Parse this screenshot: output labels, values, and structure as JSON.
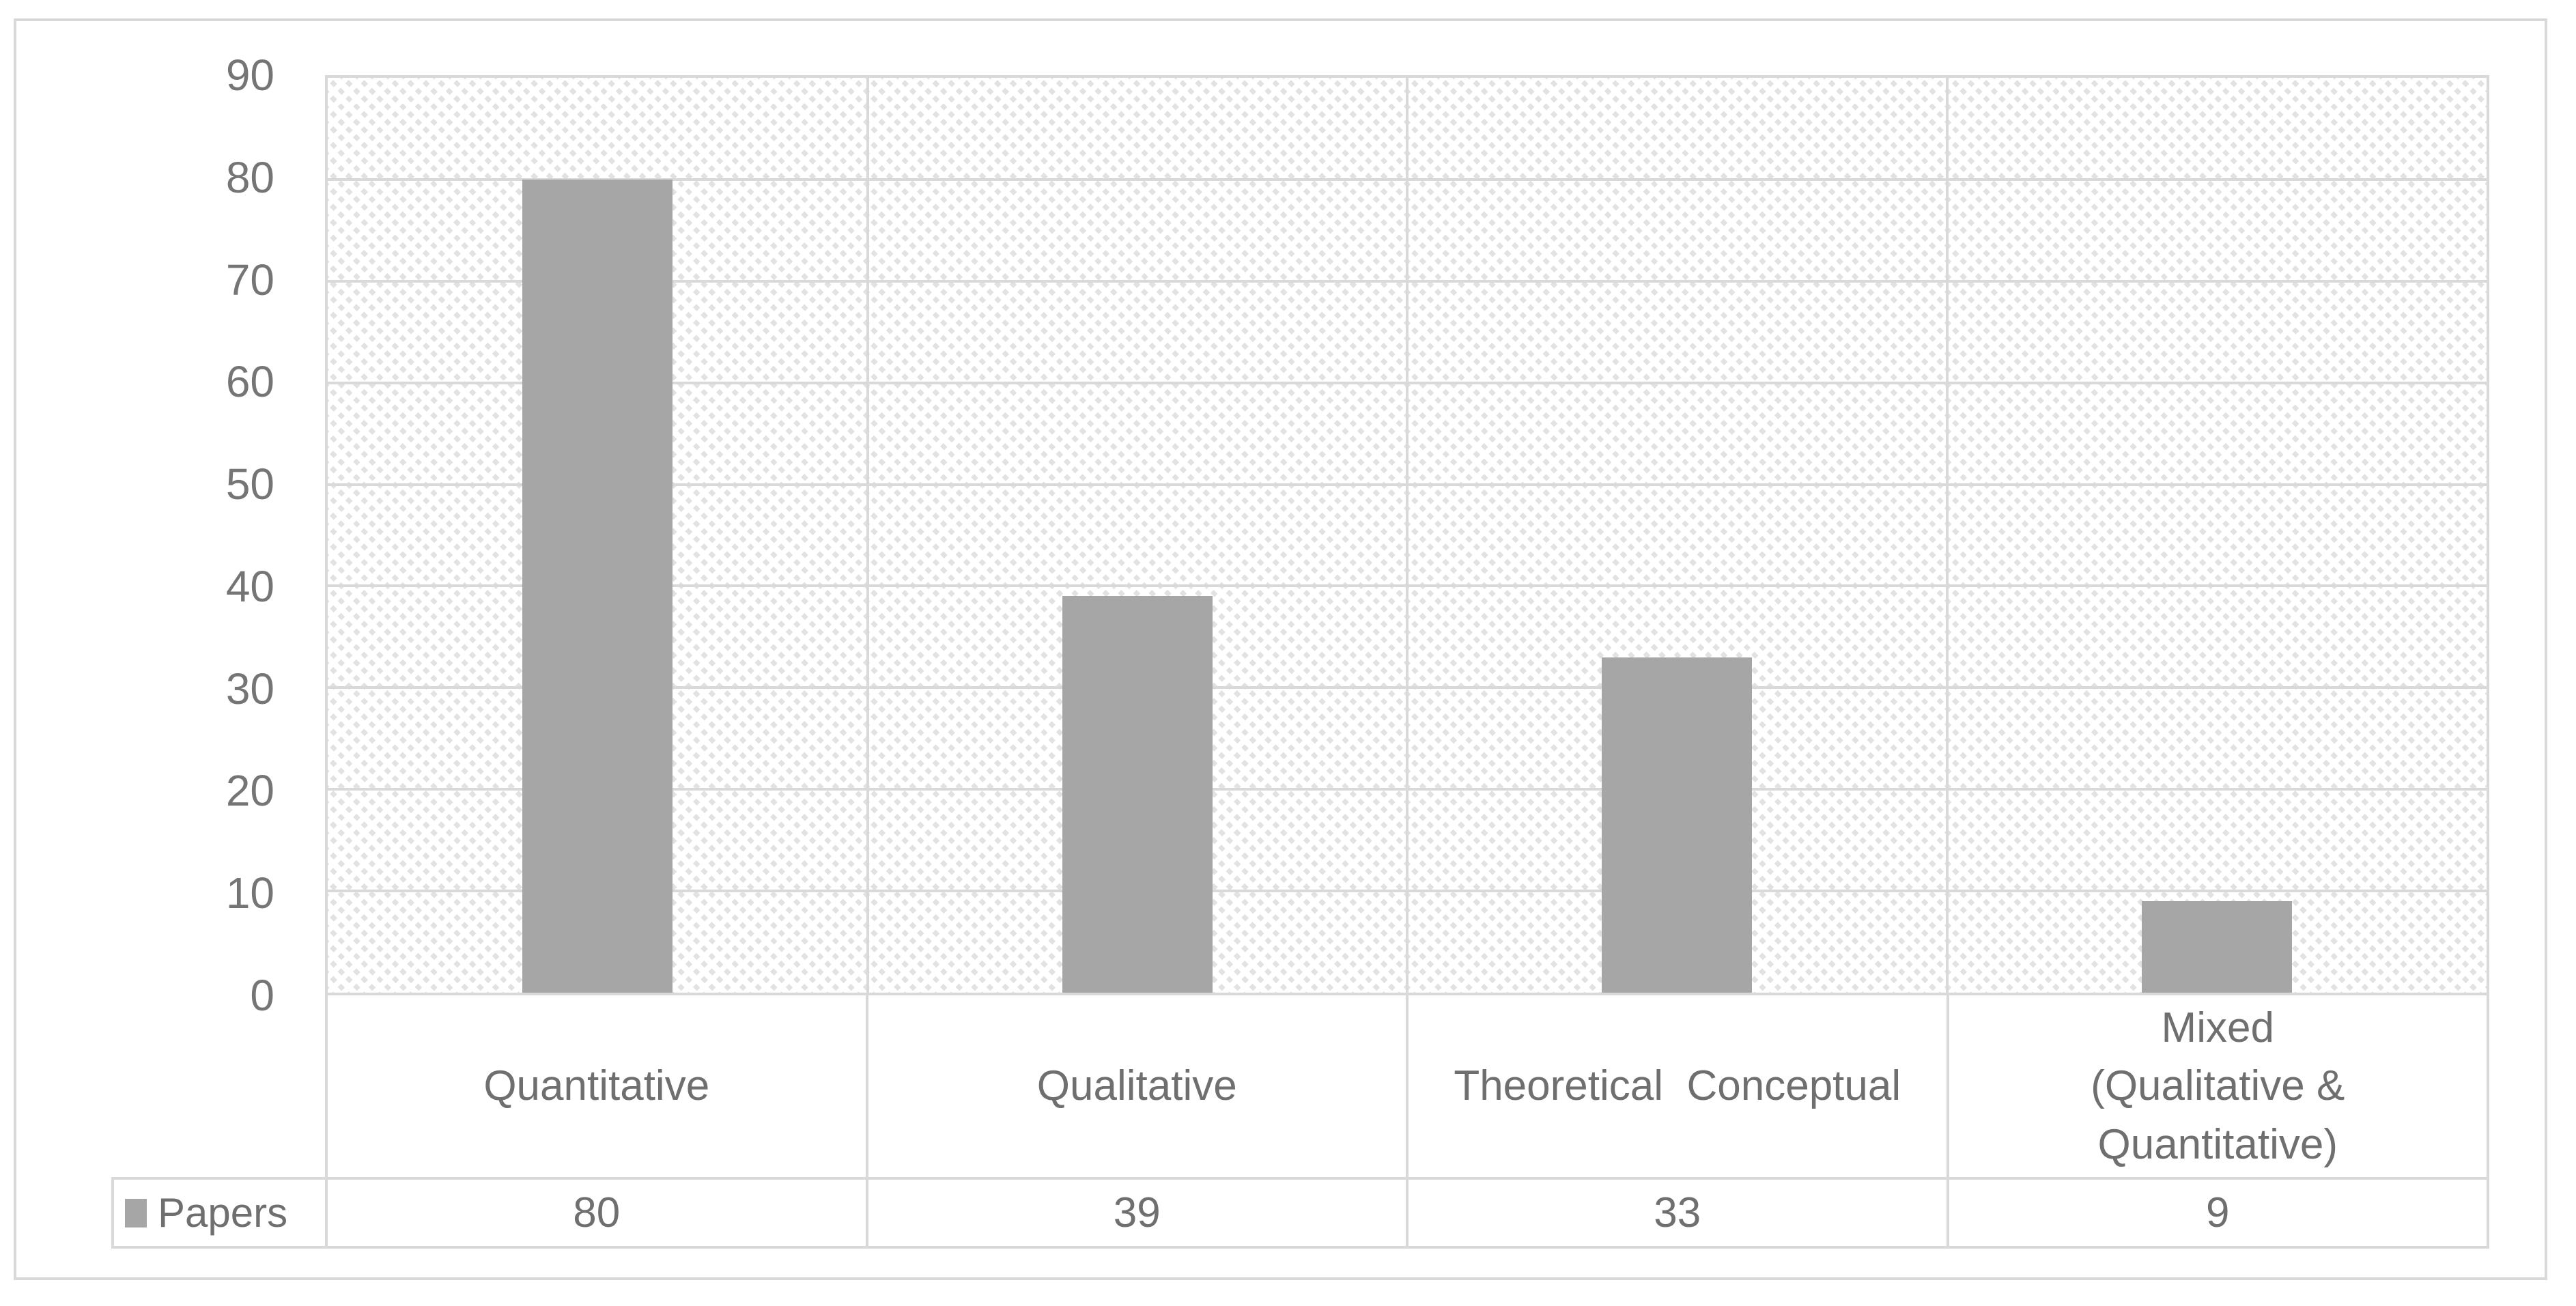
{
  "chart_data": {
    "type": "bar",
    "title": "",
    "xlabel": "",
    "ylabel": "",
    "categories": [
      "Quantitative",
      "Qualitative",
      "Theoretical  Conceptual",
      "Mixed\n(Qualitative &\nQuantitative)"
    ],
    "series": [
      {
        "name": "Papers",
        "color": "#a6a6a6",
        "values": [
          80,
          39,
          33,
          9
        ]
      }
    ],
    "ylim": [
      0,
      90
    ],
    "yticks": [
      90,
      80,
      70,
      60,
      50,
      40,
      30,
      20,
      10,
      0
    ],
    "grid": "horizontal major gridlines + vertical category boundary gridlines",
    "plot_background": "light diagonal hatch pattern",
    "legend_position": "data table row, bottom left",
    "gridline_color": "#d9d9d9",
    "text_color": "#6f6f6f",
    "hatch_color": "#e2e2e2"
  }
}
